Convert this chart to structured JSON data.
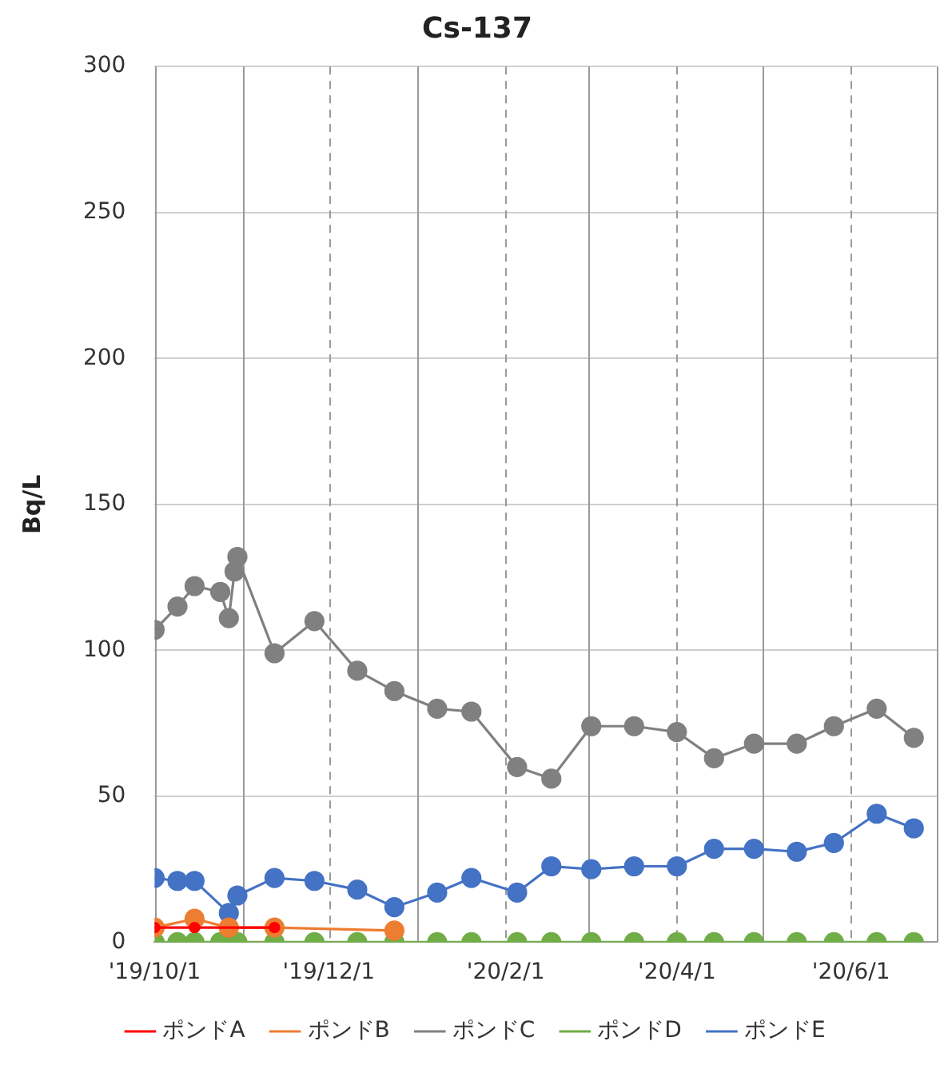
{
  "chart_data": {
    "type": "line",
    "title": "Cs-137",
    "ylabel": "Bq/L",
    "xlim": [
      "2019-10-01",
      "2020-07-01"
    ],
    "xticks": [
      {
        "value": "2019-10-01",
        "label": "'19/10/1"
      },
      {
        "value": "2019-11-01",
        "label": null
      },
      {
        "value": "2019-12-01",
        "label": "'19/12/1"
      },
      {
        "value": "2020-01-01",
        "label": null
      },
      {
        "value": "2020-02-01",
        "label": "'20/2/1"
      },
      {
        "value": "2020-03-01",
        "label": null
      },
      {
        "value": "2020-04-01",
        "label": "'20/4/1"
      },
      {
        "value": "2020-05-01",
        "label": null
      },
      {
        "value": "2020-06-01",
        "label": "'20/6/1"
      },
      {
        "value": "2020-07-01",
        "label": null
      }
    ],
    "ylim": [
      0,
      300
    ],
    "yticks": [
      0,
      50,
      100,
      150,
      200,
      250,
      300
    ],
    "grid": true,
    "legend": "bottom",
    "marker": "circle",
    "series": [
      {
        "name": "ポンドA",
        "color": "#ff0000",
        "x": [
          "2019-10-01",
          "2019-10-15",
          "2019-11-12"
        ],
        "values": [
          5,
          5,
          5
        ]
      },
      {
        "name": "ポンドB",
        "color": "#ed7d31",
        "x": [
          "2019-10-01",
          "2019-10-15",
          "2019-10-27",
          "2019-11-12",
          "2019-12-24"
        ],
        "values": [
          5,
          8,
          5,
          5,
          4
        ]
      },
      {
        "name": "ポンドC",
        "color": "#808080",
        "x": [
          "2019-10-01",
          "2019-10-09",
          "2019-10-15",
          "2019-10-24",
          "2019-10-27",
          "2019-10-29",
          "2019-10-30",
          "2019-11-12",
          "2019-11-26",
          "2019-12-11",
          "2019-12-24",
          "2020-01-08",
          "2020-01-20",
          "2020-02-05",
          "2020-02-17",
          "2020-03-02",
          "2020-03-17",
          "2020-04-01",
          "2020-04-14",
          "2020-04-28",
          "2020-05-13",
          "2020-05-26",
          "2020-06-10",
          "2020-06-23"
        ],
        "values": [
          107,
          115,
          122,
          120,
          111,
          127,
          132,
          99,
          110,
          93,
          86,
          80,
          79,
          60,
          56,
          74,
          74,
          72,
          63,
          68,
          68,
          74,
          80,
          70
        ]
      },
      {
        "name": "ポンドD",
        "color": "#70ad47",
        "x": [
          "2019-10-01",
          "2019-10-09",
          "2019-10-15",
          "2019-10-24",
          "2019-10-27",
          "2019-10-29",
          "2019-10-30",
          "2019-11-12",
          "2019-11-26",
          "2019-12-11",
          "2019-12-24",
          "2020-01-08",
          "2020-01-20",
          "2020-02-05",
          "2020-02-17",
          "2020-03-02",
          "2020-03-17",
          "2020-04-01",
          "2020-04-14",
          "2020-04-28",
          "2020-05-13",
          "2020-05-26",
          "2020-06-10",
          "2020-06-23"
        ],
        "values": [
          0,
          0,
          0,
          0,
          0,
          0,
          0,
          0,
          0,
          0,
          0,
          0,
          0,
          0,
          0,
          0,
          0,
          0,
          0,
          0,
          0,
          0,
          0,
          0
        ]
      },
      {
        "name": "ポンドE",
        "color": "#4472c4",
        "x": [
          "2019-10-01",
          "2019-10-09",
          "2019-10-15",
          "2019-10-27",
          "2019-10-30",
          "2019-11-12",
          "2019-11-26",
          "2019-12-11",
          "2019-12-24",
          "2020-01-08",
          "2020-01-20",
          "2020-02-05",
          "2020-02-17",
          "2020-03-02",
          "2020-03-17",
          "2020-04-01",
          "2020-04-14",
          "2020-04-28",
          "2020-05-13",
          "2020-05-26",
          "2020-06-10",
          "2020-06-23"
        ],
        "values": [
          22,
          21,
          21,
          10,
          16,
          22,
          21,
          18,
          12,
          17,
          22,
          17,
          26,
          25,
          26,
          26,
          32,
          32,
          31,
          34,
          44,
          39
        ]
      }
    ]
  }
}
